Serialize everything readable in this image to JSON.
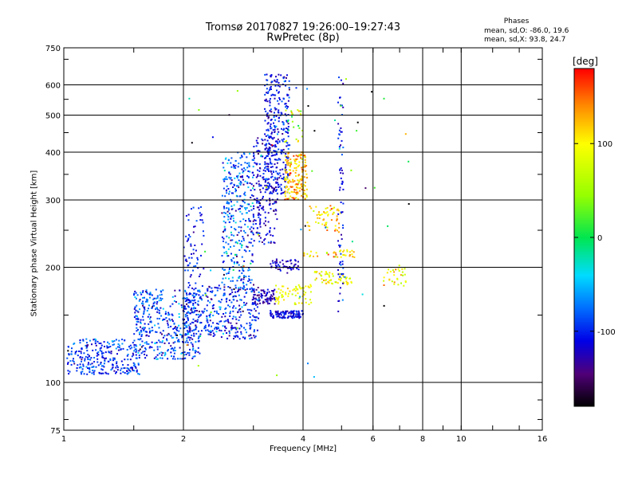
{
  "chart_data": {
    "type": "scatter",
    "title": "Tromsø 20170827  19:26:00–19:27:43",
    "subtitle": "RwPretec (8p)",
    "xlabel": "Frequency [MHz]",
    "ylabel": "Stationary phase Virtual Height [km]",
    "x_scale": "log",
    "y_scale": "log",
    "xlim": [
      1,
      16
    ],
    "ylim": [
      75,
      750
    ],
    "x_ticks": [
      1,
      2,
      4,
      6,
      8,
      10,
      16
    ],
    "y_ticks": [
      75,
      100,
      200,
      300,
      400,
      500,
      600,
      750
    ],
    "phase_stats": {
      "title": "Phases",
      "o": "mean, sd,O:  -86.0, 19.6",
      "x": "mean, sd,X:   93.8, 24.7"
    },
    "colorbar": {
      "unit": "[deg]",
      "range": [
        -180,
        180
      ],
      "ticks": [
        {
          "value": 100,
          "label": "100"
        },
        {
          "value": 0,
          "label": "0"
        },
        {
          "value": -100,
          "label": "-100"
        }
      ]
    },
    "clusters": [
      {
        "f0": 1.02,
        "f1": 1.55,
        "h0": 105,
        "h1": 130,
        "n": 280,
        "phase": -95,
        "sd": 22
      },
      {
        "f0": 1.5,
        "f1": 2.2,
        "h0": 115,
        "h1": 175,
        "n": 420,
        "phase": -90,
        "sd": 25
      },
      {
        "f0": 2.0,
        "f1": 3.1,
        "h0": 130,
        "h1": 180,
        "n": 380,
        "phase": -100,
        "sd": 25
      },
      {
        "f0": 2.0,
        "f1": 2.25,
        "h0": 180,
        "h1": 290,
        "n": 60,
        "phase": -105,
        "sd": 15
      },
      {
        "f0": 2.5,
        "f1": 3.0,
        "h0": 180,
        "h1": 400,
        "n": 330,
        "phase": -80,
        "sd": 30
      },
      {
        "f0": 3.0,
        "f1": 3.45,
        "h0": 230,
        "h1": 440,
        "n": 200,
        "phase": -115,
        "sd": 18
      },
      {
        "f0": 3.2,
        "f1": 3.7,
        "h0": 310,
        "h1": 640,
        "n": 320,
        "phase": -105,
        "sd": 18
      },
      {
        "f0": 3.0,
        "f1": 3.4,
        "h0": 160,
        "h1": 175,
        "n": 70,
        "phase": -125,
        "sd": 12
      },
      {
        "f0": 3.3,
        "f1": 4.0,
        "h0": 147,
        "h1": 154,
        "n": 110,
        "phase": -110,
        "sd": 12
      },
      {
        "f0": 3.3,
        "f1": 3.9,
        "h0": 196,
        "h1": 210,
        "n": 50,
        "phase": -120,
        "sd": 12
      },
      {
        "f0": 3.4,
        "f1": 4.2,
        "h0": 160,
        "h1": 180,
        "n": 70,
        "phase": 95,
        "sd": 15
      },
      {
        "f0": 3.6,
        "f1": 4.1,
        "h0": 300,
        "h1": 400,
        "n": 180,
        "phase": 120,
        "sd": 25
      },
      {
        "f0": 3.6,
        "f1": 4.0,
        "h0": 420,
        "h1": 520,
        "n": 25,
        "phase": 60,
        "sd": 40
      },
      {
        "f0": 4.1,
        "f1": 5.0,
        "h0": 245,
        "h1": 290,
        "n": 60,
        "phase": 115,
        "sd": 25
      },
      {
        "f0": 4.2,
        "f1": 5.3,
        "h0": 180,
        "h1": 195,
        "n": 60,
        "phase": 95,
        "sd": 18
      },
      {
        "f0": 4.0,
        "f1": 5.4,
        "h0": 212,
        "h1": 222,
        "n": 40,
        "phase": 110,
        "sd": 30
      },
      {
        "f0": 4.9,
        "f1": 5.05,
        "h0": 150,
        "h1": 640,
        "n": 70,
        "phase": -110,
        "sd": 18
      },
      {
        "f0": 6.3,
        "f1": 7.3,
        "h0": 178,
        "h1": 200,
        "n": 30,
        "phase": 95,
        "sd": 25
      },
      {
        "f0": 2.0,
        "f1": 7.5,
        "h0": 100,
        "h1": 640,
        "n": 60,
        "phase": -40,
        "sd": 90
      }
    ]
  }
}
